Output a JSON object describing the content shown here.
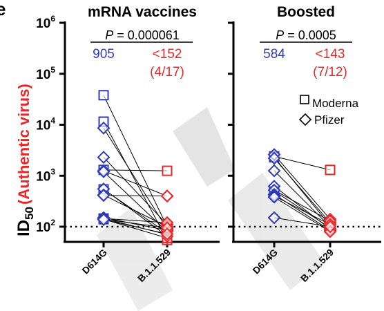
{
  "panel_letter": "e",
  "colors": {
    "d614g": "#2f3ab8",
    "omicron": "#e8262a",
    "axis": "#000000",
    "watermark": "#d9d9d9"
  },
  "chart_data": {
    "type": "scatter",
    "yscale": "log",
    "ylim": [
      50,
      1000000
    ],
    "yticks": [
      {
        "value": 100,
        "base": "10",
        "exp": "2"
      },
      {
        "value": 1000,
        "base": "10",
        "exp": "3"
      },
      {
        "value": 10000,
        "base": "10",
        "exp": "4"
      },
      {
        "value": 100000,
        "base": "10",
        "exp": "5"
      },
      {
        "value": 1000000,
        "base": "10",
        "exp": "6"
      }
    ],
    "ylabel": {
      "main": "ID",
      "sub": "50",
      "extra": "(Authentic virus)"
    },
    "limit_of_detection": 100,
    "legend": {
      "position": "right",
      "items": [
        {
          "label": "Moderna",
          "marker": "square"
        },
        {
          "label": "Pfizer",
          "marker": "diamond"
        }
      ]
    },
    "panels": [
      {
        "title": "mRNA vaccines",
        "p_label": "P",
        "p_value": "= 0.000061",
        "gmt": [
          "905",
          "<152"
        ],
        "fraction": "(4/17)",
        "categories": [
          "D614G",
          "B.1.1.529"
        ],
        "pairs": [
          {
            "vaccine": "Moderna",
            "d614g": 38000,
            "omicron": 100
          },
          {
            "vaccine": "Moderna",
            "d614g": 11500,
            "omicron": 55
          },
          {
            "vaccine": "Moderna",
            "d614g": 1300,
            "omicron": 1250
          },
          {
            "vaccine": "Moderna",
            "d614g": 540,
            "omicron": 75
          },
          {
            "vaccine": "Moderna",
            "d614g": 145,
            "omicron": 70
          },
          {
            "vaccine": "Moderna",
            "d614g": 140,
            "omicron": 60
          },
          {
            "vaccine": "Pfizer",
            "d614g": 8600,
            "omicron": 90
          },
          {
            "vaccine": "Pfizer",
            "d614g": 2300,
            "omicron": 110
          },
          {
            "vaccine": "Pfizer",
            "d614g": 1250,
            "omicron": 400
          },
          {
            "vaccine": "Pfizer",
            "d614g": 1200,
            "omicron": 80
          },
          {
            "vaccine": "Pfizer",
            "d614g": 550,
            "omicron": 65
          },
          {
            "vaccine": "Pfizer",
            "d614g": 420,
            "omicron": 100
          },
          {
            "vaccine": "Pfizer",
            "d614g": 410,
            "omicron": 400
          },
          {
            "vaccine": "Pfizer",
            "d614g": 150,
            "omicron": 85
          },
          {
            "vaccine": "Pfizer",
            "d614g": 145,
            "omicron": 120
          },
          {
            "vaccine": "Pfizer",
            "d614g": 140,
            "omicron": 95
          },
          {
            "vaccine": "Pfizer",
            "d614g": 138,
            "omicron": 72
          }
        ]
      },
      {
        "title": "Boosted",
        "p_label": "P",
        "p_value": "= 0.0005",
        "gmt": [
          "584",
          "<143"
        ],
        "fraction": "(7/12)",
        "categories": [
          "D614G",
          "B.1.1.529"
        ],
        "pairs": [
          {
            "vaccine": "Moderna",
            "d614g": 2400,
            "omicron": 1300
          },
          {
            "vaccine": "Moderna",
            "d614g": 2300,
            "omicron": 105
          },
          {
            "vaccine": "Moderna",
            "d614g": 500,
            "omicron": 95
          },
          {
            "vaccine": "Pfizer",
            "d614g": 2600,
            "omicron": 140
          },
          {
            "vaccine": "Pfizer",
            "d614g": 2200,
            "omicron": 120
          },
          {
            "vaccine": "Pfizer",
            "d614g": 1250,
            "omicron": 100
          },
          {
            "vaccine": "Pfizer",
            "d614g": 620,
            "omicron": 90
          },
          {
            "vaccine": "Pfizer",
            "d614g": 520,
            "omicron": 130
          },
          {
            "vaccine": "Pfizer",
            "d614g": 430,
            "omicron": 85
          },
          {
            "vaccine": "Pfizer",
            "d614g": 400,
            "omicron": 110
          },
          {
            "vaccine": "Pfizer",
            "d614g": 380,
            "omicron": 80
          },
          {
            "vaccine": "Pfizer",
            "d614g": 150,
            "omicron": 100
          }
        ]
      }
    ]
  }
}
